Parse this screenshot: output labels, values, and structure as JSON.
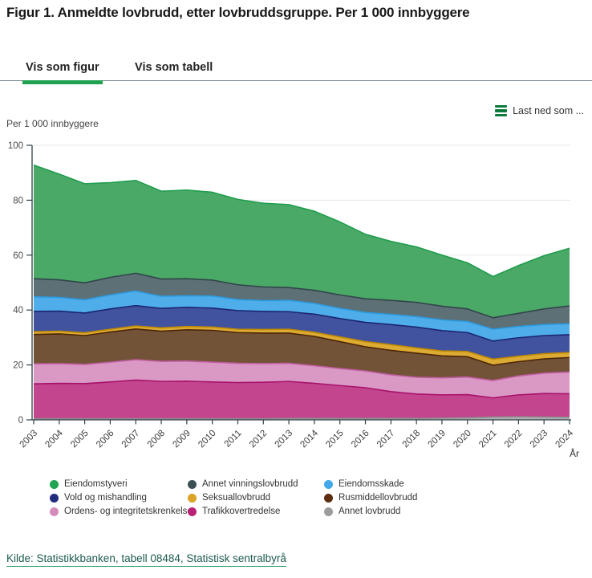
{
  "page": {
    "title": "Figur 1. Anmeldte lovbrudd, etter lovbruddsgruppe. Per 1 000 innbyggere"
  },
  "tabs": [
    {
      "label": "Vis som figur",
      "active": true
    },
    {
      "label": "Vis som tabell",
      "active": false
    }
  ],
  "toolbar": {
    "download_label": "Last ned som ..."
  },
  "source": {
    "text": "Kilde: Statistikkbanken, tabell 08484, Statistisk sentralbyrå"
  },
  "colors": {
    "accent_green": "#1fa14f",
    "tab_divider": "#75828a",
    "download_icon_green": "#0c7a3c",
    "axis": "#2f4046",
    "gridline": "#e7e7e7"
  },
  "chart_data": {
    "type": "area",
    "stacked": true,
    "title": "Figur 1. Anmeldte lovbrudd, etter lovbruddsgruppe. Per 1 000 innbyggere",
    "ylabel": "Per 1 000 innbyggere",
    "xlabel": "År",
    "ylim": [
      0,
      100
    ],
    "yticks": [
      0,
      20,
      40,
      60,
      80,
      100
    ],
    "grid": true,
    "legend_position": "bottom",
    "stacking_note": "series stacked bottom-to-top in reverse legend order (Annet lovbrudd at bottom, Eiendomstyveri on top)",
    "x": [
      2003,
      2004,
      2005,
      2006,
      2007,
      2008,
      2009,
      2010,
      2011,
      2012,
      2013,
      2014,
      2015,
      2016,
      2017,
      2018,
      2019,
      2020,
      2021,
      2022,
      2023,
      2024
    ],
    "series": [
      {
        "id": "eiendomstyveri",
        "name": "Eiendomstyveri",
        "legend_color": "#21a453",
        "fill": "#4aa966",
        "stroke": "#1f9d4e",
        "values": [
          41.4,
          38.5,
          36.1,
          34.5,
          33.8,
          32.0,
          32.3,
          32.0,
          31.1,
          30.5,
          30.2,
          28.8,
          26.6,
          23.5,
          21.5,
          20.2,
          18.6,
          16.8,
          15.0,
          17.4,
          19.4,
          21.0
        ]
      },
      {
        "id": "annet-vinningslovbrudd",
        "name": "Annet vinningslovbrudd",
        "legend_color": "#3b4f55",
        "fill": "#5d7076",
        "stroke": "#31454b",
        "values": [
          6.6,
          6.4,
          6.2,
          6.4,
          6.5,
          6.3,
          6.2,
          5.8,
          5.4,
          5.0,
          4.7,
          4.8,
          4.9,
          5.0,
          5.1,
          5.2,
          5.0,
          4.6,
          4.2,
          4.8,
          5.7,
          6.5
        ]
      },
      {
        "id": "eiendomsskade",
        "name": "Eiendomsskade",
        "legend_color": "#41a9ea",
        "fill": "#4fadea",
        "stroke": "#2b9be0",
        "values": [
          5.3,
          5.0,
          4.8,
          5.1,
          5.3,
          4.4,
          4.2,
          4.4,
          4.0,
          3.9,
          4.1,
          3.9,
          3.7,
          3.6,
          3.7,
          3.8,
          3.9,
          4.0,
          4.3,
          4.1,
          4.0,
          4.0
        ]
      },
      {
        "id": "vold-og-mishandling",
        "name": "Vold og mishandling",
        "legend_color": "#232d7d",
        "fill": "#41529e",
        "stroke": "#1b2672",
        "values": [
          7.4,
          7.3,
          7.2,
          7.4,
          7.4,
          7.1,
          7.0,
          6.9,
          6.8,
          6.6,
          6.4,
          6.6,
          6.7,
          7.0,
          7.3,
          7.6,
          7.4,
          6.9,
          6.6,
          6.7,
          6.6,
          6.5
        ]
      },
      {
        "id": "seksuallovbrudd",
        "name": "Seksuallovbrudd",
        "legend_color": "#dba327",
        "fill": "#dcab33",
        "stroke": "#bf8903",
        "values": [
          1.0,
          1.0,
          1.0,
          1.0,
          1.1,
          1.2,
          1.2,
          1.2,
          1.2,
          1.3,
          1.4,
          1.5,
          1.7,
          1.9,
          2.1,
          1.9,
          1.8,
          1.9,
          2.2,
          2.0,
          1.9,
          1.8
        ]
      },
      {
        "id": "rusmiddellovbrudd",
        "name": "Rusmiddellovbrudd",
        "legend_color": "#5c2e0e",
        "fill": "#735337",
        "stroke": "#4d2607",
        "values": [
          10.7,
          10.8,
          10.5,
          11.0,
          11.2,
          11.0,
          11.4,
          11.6,
          11.2,
          11.1,
          11.0,
          10.7,
          9.8,
          8.8,
          8.9,
          8.8,
          8.0,
          7.4,
          5.6,
          5.2,
          5.2,
          5.3
        ]
      },
      {
        "id": "ordens-og-integritetskrenkelse",
        "name": "Ordens- og integritetskrenkelse",
        "legend_color": "#d48cbc",
        "fill": "#d999c4",
        "stroke": "#c35da4",
        "values": [
          7.3,
          7.2,
          7.0,
          7.2,
          7.4,
          7.3,
          7.3,
          7.2,
          7.0,
          6.8,
          6.6,
          6.4,
          6.2,
          6.1,
          6.1,
          6.1,
          6.2,
          6.4,
          6.3,
          6.9,
          7.4,
          7.9
        ]
      },
      {
        "id": "trafikkovertredelse",
        "name": "Trafikkovertredelse",
        "legend_color": "#b82277",
        "fill": "#c2458e",
        "stroke": "#a8116b",
        "values": [
          12.7,
          12.9,
          12.8,
          13.4,
          14.1,
          13.6,
          13.7,
          13.4,
          13.2,
          13.3,
          13.5,
          12.8,
          12.0,
          11.2,
          9.8,
          8.9,
          8.5,
          8.5,
          7.0,
          8.0,
          8.6,
          8.6
        ]
      },
      {
        "id": "annet-lovbrudd",
        "name": "Annet lovbrudd",
        "legend_color": "#9c9c9c",
        "fill": "#b0b0b0",
        "stroke": "#8f8f8f",
        "values": [
          0.4,
          0.4,
          0.4,
          0.4,
          0.4,
          0.4,
          0.4,
          0.4,
          0.4,
          0.4,
          0.5,
          0.5,
          0.5,
          0.5,
          0.5,
          0.5,
          0.6,
          0.7,
          1.0,
          1.1,
          1.0,
          0.9
        ]
      }
    ]
  }
}
